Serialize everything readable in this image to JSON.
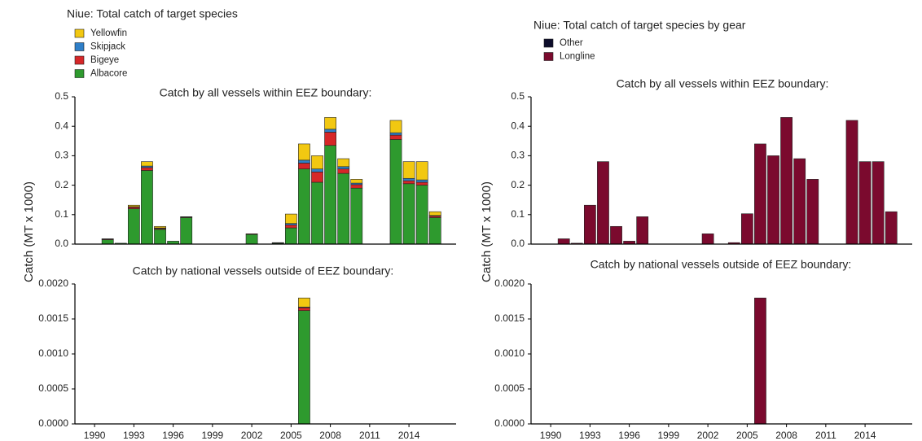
{
  "left_panel": {
    "title": "Niue: Total catch of target species",
    "ylabel": "Catch (MT x 1000)"
  },
  "right_panel": {
    "title": "Niue: Total catch of target species by gear",
    "ylabel": "Catch (MT x 1000)"
  },
  "chart_data": [
    {
      "type": "bar",
      "stacked": true,
      "title": "Catch by all vessels within EEZ boundary:",
      "x": [
        1991,
        1992,
        1993,
        1994,
        1995,
        1996,
        1997,
        2002,
        2004,
        2005,
        2006,
        2007,
        2008,
        2009,
        2010,
        2013,
        2014,
        2015,
        2016
      ],
      "xlim": [
        1988.5,
        2017.6
      ],
      "ylim": [
        0,
        0.5
      ],
      "yticks": [
        {
          "value": 0,
          "label": "0.0"
        },
        0.1,
        0.2,
        0.3,
        0.4,
        0.5
      ],
      "series": [
        {
          "name": "Albacore",
          "color": "#2e9a2e",
          "values": [
            0.015,
            0.003,
            0.12,
            0.25,
            0.05,
            0.01,
            0.09,
            0.033,
            0.003,
            0.055,
            0.255,
            0.21,
            0.335,
            0.24,
            0.19,
            0.355,
            0.205,
            0.2,
            0.09
          ]
        },
        {
          "name": "Bigeye",
          "color": "#d62728",
          "values": [
            0.002,
            0,
            0.005,
            0.01,
            0.003,
            0,
            0.002,
            0.002,
            0.001,
            0.01,
            0.02,
            0.035,
            0.045,
            0.015,
            0.012,
            0.015,
            0.01,
            0.01,
            0.005
          ]
        },
        {
          "name": "Skipjack",
          "color": "#2f7fc8",
          "values": [
            0,
            0,
            0.002,
            0.005,
            0.002,
            0,
            0,
            0,
            0,
            0.005,
            0.01,
            0.01,
            0.01,
            0.008,
            0.005,
            0.008,
            0.008,
            0.008,
            0.002
          ]
        },
        {
          "name": "Yellowfin",
          "color": "#f2c811",
          "values": [
            0.001,
            0,
            0.005,
            0.015,
            0.005,
            0,
            0.001,
            0,
            0.001,
            0.032,
            0.055,
            0.045,
            0.04,
            0.027,
            0.013,
            0.042,
            0.057,
            0.062,
            0.013
          ]
        }
      ]
    },
    {
      "type": "bar",
      "stacked": true,
      "title": "Catch by national vessels outside of EEZ boundary:",
      "x": [
        2006
      ],
      "xlim": [
        1988.5,
        2017.6
      ],
      "xticks": [
        1990,
        1993,
        1996,
        1999,
        2002,
        2005,
        2008,
        2011,
        2014
      ],
      "ylim": [
        0,
        0.002
      ],
      "yticks": [
        {
          "value": 0,
          "label": "0.0000"
        },
        0.0005,
        {
          "value": 0.001,
          "label": "0.0010"
        },
        0.0015,
        {
          "value": 0.002,
          "label": "0.0020"
        }
      ],
      "series": [
        {
          "color": "#2e9a2e",
          "values": [
            0.00162
          ]
        },
        {
          "color": "#d62728",
          "values": [
            4e-05
          ]
        },
        {
          "color": "#2f7fc8",
          "values": [
            1e-05
          ]
        },
        {
          "color": "#f2c811",
          "values": [
            0.00013
          ]
        }
      ]
    },
    {
      "type": "bar",
      "stacked": true,
      "title": "Catch by all vessels within EEZ boundary:",
      "x": [
        1991,
        1992,
        1993,
        1994,
        1995,
        1996,
        1997,
        2002,
        2004,
        2005,
        2006,
        2007,
        2008,
        2009,
        2010,
        2013,
        2014,
        2015,
        2016
      ],
      "xlim": [
        1988.5,
        2017.6
      ],
      "ylim": [
        0,
        0.5
      ],
      "yticks": [
        {
          "value": 0,
          "label": "0.0"
        },
        0.1,
        0.2,
        0.3,
        0.4,
        0.5
      ],
      "series": [
        {
          "name": "Longline",
          "color": "#7b0a2e",
          "values": [
            0.018,
            0.003,
            0.132,
            0.28,
            0.06,
            0.01,
            0.093,
            0.035,
            0.005,
            0.103,
            0.34,
            0.3,
            0.43,
            0.29,
            0.22,
            0.42,
            0.28,
            0.28,
            0.11
          ]
        },
        {
          "name": "Other",
          "color": "#0d0d2b",
          "values": [
            0,
            0,
            0,
            0,
            0,
            0,
            0,
            0,
            0,
            0,
            0,
            0,
            0,
            0,
            0,
            0,
            0,
            0,
            0
          ]
        }
      ]
    },
    {
      "type": "bar",
      "stacked": true,
      "title": "Catch by national vessels outside of EEZ boundary:",
      "x": [
        2006
      ],
      "xlim": [
        1988.5,
        2017.6
      ],
      "xticks": [
        1990,
        1993,
        1996,
        1999,
        2002,
        2005,
        2008,
        2011,
        2014
      ],
      "ylim": [
        0,
        0.002
      ],
      "yticks": [
        {
          "value": 0,
          "label": "0.0000"
        },
        0.0005,
        {
          "value": 0.001,
          "label": "0.0010"
        },
        0.0015,
        {
          "value": 0.002,
          "label": "0.0020"
        }
      ],
      "series": [
        {
          "color": "#7b0a2e",
          "values": [
            0.0018
          ]
        },
        {
          "color": "#0d0d2b",
          "values": [
            0
          ]
        }
      ]
    }
  ]
}
